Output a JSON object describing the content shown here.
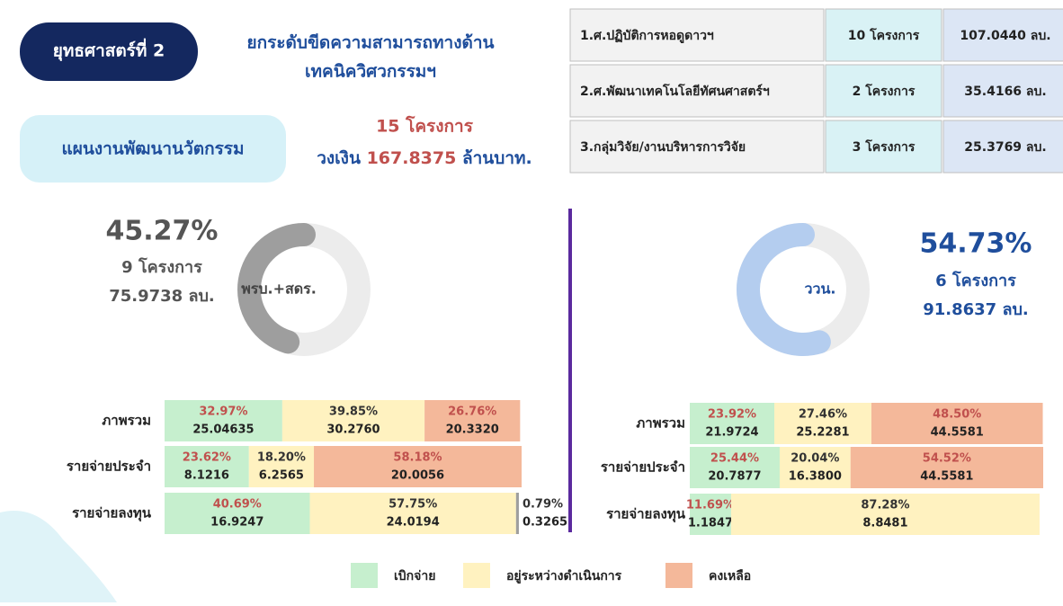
{
  "header": {
    "badge": "ยุทธศาสตร์ที่ 2",
    "title_line1": "ยกระดับขีดความสามารถทางด้าน",
    "title_line2": "เทคนิควิศวกรรมฯ",
    "plan": "แผนงานพัฒนานวัตกรรม",
    "projects": "15 โครงการ",
    "budget_prefix": "วงเงิน",
    "budget": "167.8375",
    "budget_suffix": "ล้านบาท."
  },
  "table": {
    "rows": [
      [
        "1.ศ.ปฏิบัติการหอดูดาวฯ",
        "10 โครงการ",
        "107.0440 ลบ."
      ],
      [
        "2.ศ.พัฒนาเทคโนโลยีทัศนศาสตร์ฯ",
        "2 โครงการ",
        "35.4166 ลบ."
      ],
      [
        "3.กลุ่มวิจัย/งานบริหารการวิจัย",
        "3 โครงการ",
        "25.3769 ลบ."
      ]
    ]
  },
  "panels": [
    {
      "label": "พรบ.+สดร.",
      "percent": 45.27,
      "percent_label": "45.27%",
      "projects": "9 โครงการ",
      "amount": "75.9738 ลบ.",
      "color": "#9e9e9e",
      "rows": [
        {
          "name": "ภาพรวม",
          "values": [
            32.97,
            39.85,
            26.76
          ],
          "value_labels": [
            "32.97%",
            "39.85%",
            "26.76%"
          ],
          "amounts": [
            "25.04635",
            "30.2760",
            "20.3320"
          ],
          "colors": [
            "#c6efce",
            "#fff2c0",
            "#f4b89a"
          ]
        },
        {
          "name": "รายจ่ายประจำ",
          "values": [
            23.62,
            18.2,
            58.18
          ],
          "value_labels": [
            "23.62%",
            "18.20%",
            "58.18%"
          ],
          "amounts": [
            "8.1216",
            "6.2565",
            "20.0056"
          ],
          "colors": [
            "#c6efce",
            "#fff2c0",
            "#f4b89a"
          ]
        },
        {
          "name": "รายจ่ายลงทุน",
          "values": [
            40.69,
            57.75,
            0.79
          ],
          "value_labels": [
            "40.69%",
            "57.75%",
            "0.79%"
          ],
          "amounts": [
            "16.9247",
            "24.0194",
            "0.3265"
          ],
          "colors": [
            "#c6efce",
            "#fff2c0",
            "#9e9e9e"
          ]
        }
      ]
    },
    {
      "label": "ววน.",
      "percent": 54.73,
      "percent_label": "54.73%",
      "projects": "6 โครงการ",
      "amount": "91.8637 ลบ.",
      "color": "#b4cdef",
      "rows": [
        {
          "name": "ภาพรวม",
          "values": [
            23.92,
            27.46,
            48.5
          ],
          "value_labels": [
            "23.92%",
            "27.46%",
            "48.50%"
          ],
          "amounts": [
            "21.9724",
            "25.2281",
            "44.5581"
          ],
          "colors": [
            "#c6efce",
            "#fff2c0",
            "#f4b89a"
          ]
        },
        {
          "name": "รายจ่ายประจำ",
          "values": [
            25.44,
            20.04,
            54.52
          ],
          "value_labels": [
            "25.44%",
            "20.04%",
            "54.52%"
          ],
          "amounts": [
            "20.7877",
            "16.3800",
            "44.5581"
          ],
          "colors": [
            "#c6efce",
            "#fff2c0",
            "#f4b89a"
          ]
        },
        {
          "name": "รายจ่ายลงทุน",
          "values": [
            11.69,
            87.28
          ],
          "value_labels": [
            "11.69%",
            "87.28%"
          ],
          "amounts": [
            "1.1847",
            "8.8481"
          ],
          "colors": [
            "#c6efce",
            "#fff2c0"
          ]
        }
      ]
    }
  ],
  "legend": [
    {
      "name": "เบิกจ่าย",
      "color": "#c6efce"
    },
    {
      "name": "อยู่ระหว่างดำเนินการ",
      "color": "#fff2c0"
    },
    {
      "name": "คงเหลือ",
      "color": "#f4b89a"
    }
  ]
}
